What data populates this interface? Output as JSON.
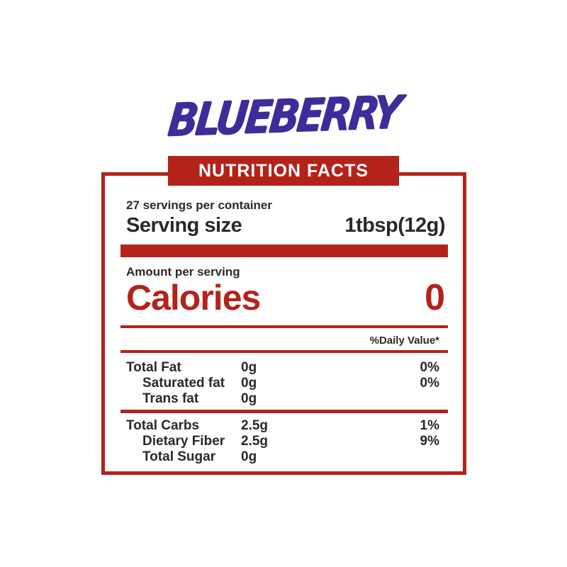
{
  "logo": {
    "text": "BLUEBERRY"
  },
  "banner": {
    "label": "NUTRITION FACTS"
  },
  "panel": {
    "servings_per_container": "27 servings per container",
    "serving_size_label": "Serving size",
    "serving_size_value": "1tbsp(12g)",
    "amount_per_serving_label": "Amount per serving",
    "calories_label": "Calories",
    "calories_value": "0",
    "daily_value_header": "%Daily Value*",
    "rows": [
      {
        "label": "Total Fat",
        "amount": "0g",
        "dv": "0%"
      },
      {
        "label": "Saturated fat",
        "amount": "0g",
        "dv": "0%"
      },
      {
        "label": "Trans fat",
        "amount": "0g",
        "dv": ""
      },
      {
        "label": "Total Carbs",
        "amount": "2.5g",
        "dv": "1%"
      },
      {
        "label": "Dietary Fiber",
        "amount": "2.5g",
        "dv": "9%"
      },
      {
        "label": "Total Sugar",
        "amount": "0g",
        "dv": ""
      }
    ]
  },
  "colors": {
    "red": "#b3231a",
    "purple": "#3c2d9a",
    "ink": "#2b282a",
    "banner_text": "#ffffff",
    "paper": "#ffffff"
  }
}
